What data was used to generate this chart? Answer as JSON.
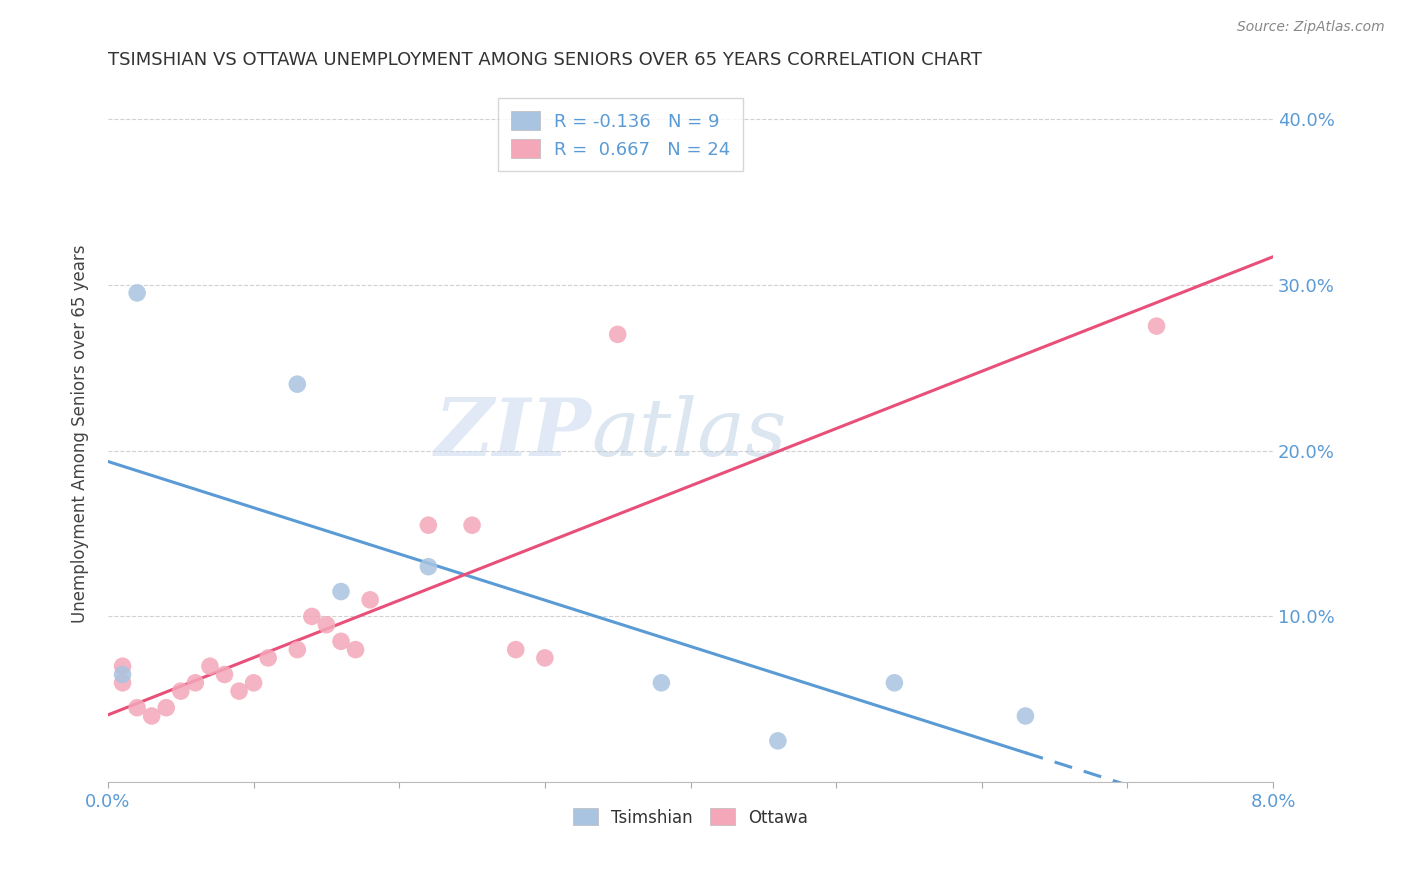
{
  "title": "TSIMSHIAN VS OTTAWA UNEMPLOYMENT AMONG SENIORS OVER 65 YEARS CORRELATION CHART",
  "source": "Source: ZipAtlas.com",
  "ylabel": "Unemployment Among Seniors over 65 years",
  "xlim": [
    0.0,
    0.08
  ],
  "ylim": [
    0.0,
    0.42
  ],
  "tsimshian_x": [
    0.001,
    0.002,
    0.013,
    0.016,
    0.022,
    0.038,
    0.046,
    0.054,
    0.063
  ],
  "tsimshian_y": [
    0.065,
    0.295,
    0.24,
    0.115,
    0.13,
    0.06,
    0.025,
    0.06,
    0.04
  ],
  "ottawa_x": [
    0.001,
    0.001,
    0.002,
    0.003,
    0.004,
    0.005,
    0.006,
    0.007,
    0.008,
    0.009,
    0.01,
    0.011,
    0.013,
    0.014,
    0.015,
    0.016,
    0.017,
    0.018,
    0.022,
    0.025,
    0.028,
    0.03,
    0.035,
    0.072
  ],
  "ottawa_y": [
    0.06,
    0.07,
    0.045,
    0.04,
    0.045,
    0.055,
    0.06,
    0.07,
    0.065,
    0.055,
    0.06,
    0.075,
    0.08,
    0.1,
    0.095,
    0.085,
    0.08,
    0.11,
    0.155,
    0.155,
    0.08,
    0.075,
    0.27,
    0.275
  ],
  "tsimshian_color": "#a8c4e0",
  "ottawa_color": "#f4a7b9",
  "tsimshian_line_color": "#5b9bd5",
  "ottawa_line_color": "#e8507a",
  "legend_r_tsimshian": "-0.136",
  "legend_n_tsimshian": "9",
  "legend_r_ottawa": "0.667",
  "legend_n_ottawa": "24",
  "watermark_zip": "ZIP",
  "watermark_atlas": "atlas",
  "background_color": "#ffffff",
  "grid_color": "#cccccc",
  "text_color": "#5b9bd5",
  "title_color": "#333333"
}
